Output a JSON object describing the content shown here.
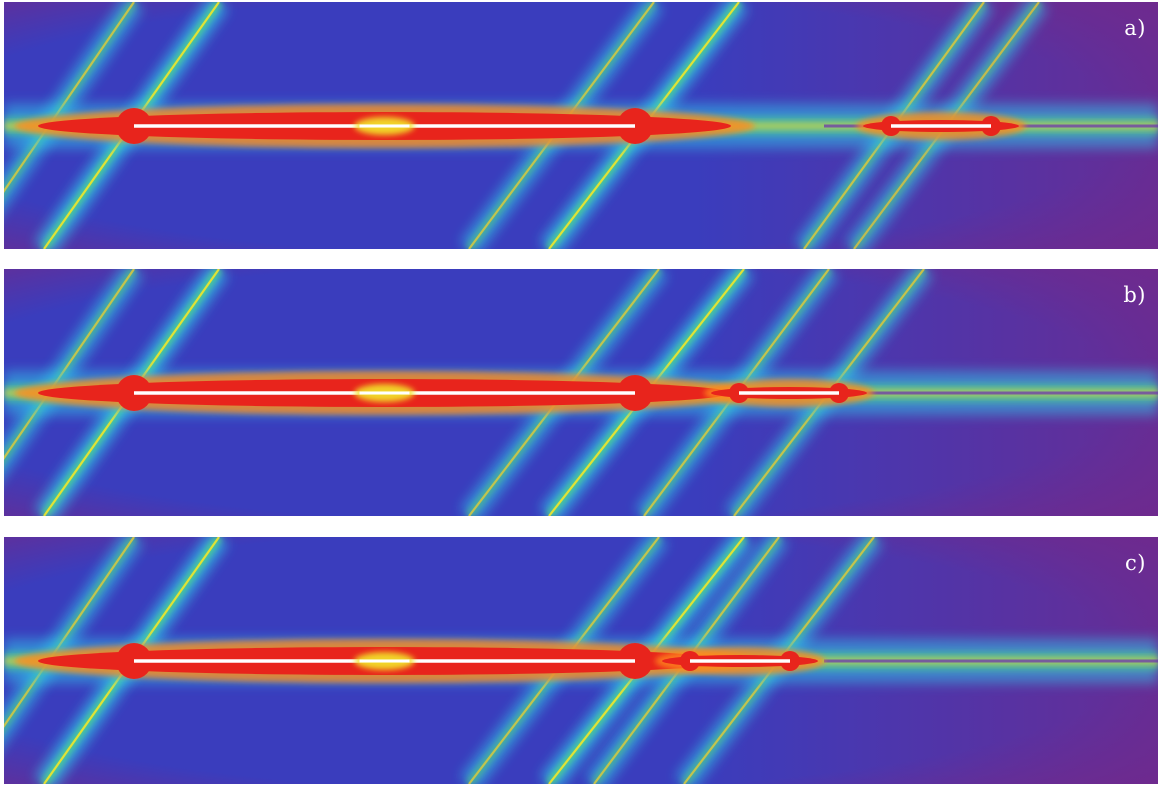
{
  "panels": [
    {
      "id": "a",
      "label": "a)",
      "cracks": [
        {
          "x1": 130,
          "x2": 631
        },
        {
          "x1": 887,
          "x2": 987
        }
      ],
      "bands": [
        {
          "x_top": 215,
          "x_bottom": 40,
          "strength": 1
        },
        {
          "x_top": 130,
          "x_bottom": -40,
          "strength": 0.6
        },
        {
          "x_top": 735,
          "x_bottom": 545,
          "strength": 1
        },
        {
          "x_top": 650,
          "x_bottom": 465,
          "strength": 0.6
        },
        {
          "x_top": 980,
          "x_bottom": 800,
          "strength": 0.6
        },
        {
          "x_top": 1035,
          "x_bottom": 850,
          "strength": 0.5
        }
      ]
    },
    {
      "id": "b",
      "label": "b)",
      "cracks": [
        {
          "x1": 130,
          "x2": 631
        },
        {
          "x1": 735,
          "x2": 835
        }
      ],
      "bands": [
        {
          "x_top": 215,
          "x_bottom": 40,
          "strength": 1
        },
        {
          "x_top": 130,
          "x_bottom": -40,
          "strength": 0.6
        },
        {
          "x_top": 740,
          "x_bottom": 545,
          "strength": 1
        },
        {
          "x_top": 655,
          "x_bottom": 465,
          "strength": 0.6
        },
        {
          "x_top": 825,
          "x_bottom": 640,
          "strength": 0.6
        },
        {
          "x_top": 920,
          "x_bottom": 730,
          "strength": 0.6
        }
      ]
    },
    {
      "id": "c",
      "label": "c)",
      "cracks": [
        {
          "x1": 130,
          "x2": 631
        },
        {
          "x1": 686,
          "x2": 786
        }
      ],
      "bands": [
        {
          "x_top": 215,
          "x_bottom": 40,
          "strength": 1
        },
        {
          "x_top": 130,
          "x_bottom": -40,
          "strength": 0.6
        },
        {
          "x_top": 740,
          "x_bottom": 545,
          "strength": 1
        },
        {
          "x_top": 655,
          "x_bottom": 465,
          "strength": 0.6
        },
        {
          "x_top": 775,
          "x_bottom": 590,
          "strength": 0.6
        },
        {
          "x_top": 870,
          "x_bottom": 680,
          "strength": 0.6
        }
      ]
    }
  ],
  "colors": {
    "background": "#3a3dbd",
    "corner_purple": "#6e2a8e",
    "red": "#e8241c",
    "orange": "#ff8a1e",
    "yellow": "#f2e62a",
    "green": "#4fd08a",
    "cyan": "#30c4e8",
    "crack": "#ffffff"
  }
}
